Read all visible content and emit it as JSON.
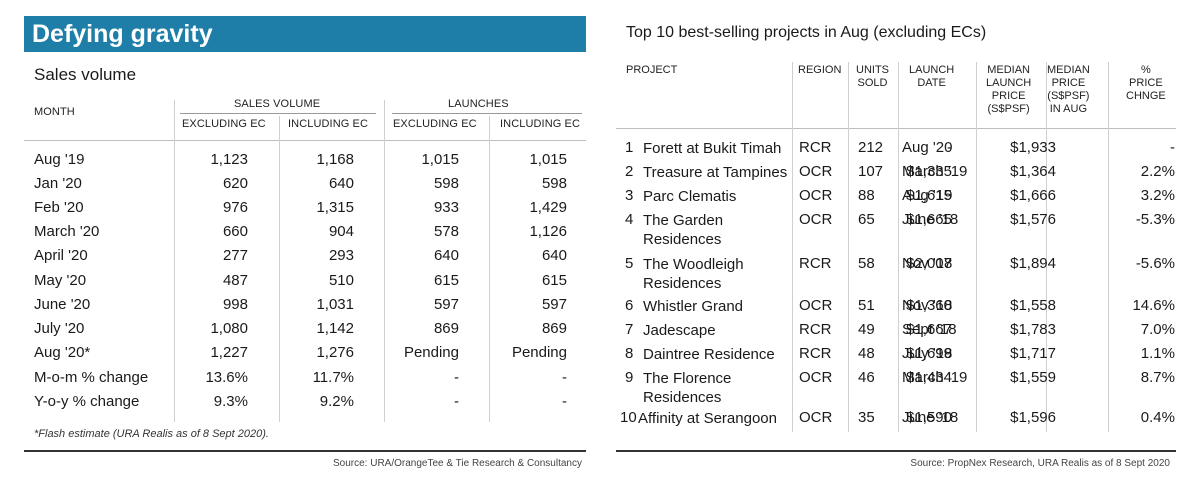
{
  "left": {
    "banner": "Defying gravity",
    "subtitle": "Sales volume",
    "headers": {
      "month": "MONTH",
      "sales_volume": "SALES VOLUME",
      "launches": "LAUNCHES",
      "excl_ec_1": "EXCLUDING EC",
      "incl_ec_1": "INCLUDING EC",
      "excl_ec_2": "EXCLUDING EC",
      "incl_ec_2": "INCLUDING EC"
    },
    "rows": [
      {
        "month": "Aug '19",
        "sv_excl": "1,123",
        "sv_incl": "1,168",
        "l_excl": "1,015",
        "l_incl": "1,015"
      },
      {
        "month": "Jan '20",
        "sv_excl": "620",
        "sv_incl": "640",
        "l_excl": "598",
        "l_incl": "598"
      },
      {
        "month": "Feb '20",
        "sv_excl": "976",
        "sv_incl": "1,315",
        "l_excl": "933",
        "l_incl": "1,429"
      },
      {
        "month": "March '20",
        "sv_excl": "660",
        "sv_incl": "904",
        "l_excl": "578",
        "l_incl": "1,126"
      },
      {
        "month": "April '20",
        "sv_excl": "277",
        "sv_incl": "293",
        "l_excl": "640",
        "l_incl": "640"
      },
      {
        "month": "May '20",
        "sv_excl": "487",
        "sv_incl": "510",
        "l_excl": "615",
        "l_incl": "615"
      },
      {
        "month": "June '20",
        "sv_excl": "998",
        "sv_incl": "1,031",
        "l_excl": "597",
        "l_incl": "597"
      },
      {
        "month": "July '20",
        "sv_excl": "1,080",
        "sv_incl": "1,142",
        "l_excl": "869",
        "l_incl": "869"
      },
      {
        "month": "Aug '20*",
        "sv_excl": "1,227",
        "sv_incl": "1,276",
        "l_excl": "Pending",
        "l_incl": "Pending"
      },
      {
        "month": "M-o-m % change",
        "sv_excl": "13.6%",
        "sv_incl": "11.7%",
        "l_excl": "-",
        "l_incl": "-"
      },
      {
        "month": "Y-o-y % change",
        "sv_excl": "9.3%",
        "sv_incl": "9.2%",
        "l_excl": "-",
        "l_incl": "-"
      }
    ],
    "footnote": "*Flash estimate (URA Realis as of 8 Sept 2020).",
    "source": "Source: URA/OrangeTee & Tie Research & Consultancy"
  },
  "right": {
    "title": "Top 10 best-selling projects in Aug (excluding ECs)",
    "headers": {
      "project": "PROJECT",
      "region": "REGION",
      "units_sold": "UNITS\nSOLD",
      "launch_date": "LAUNCH\nDATE",
      "median_launch_price": "MEDIAN\nLAUNCH\nPRICE\n(S$PSF)",
      "median_price_aug": "MEDIAN\nPRICE\n(S$PSF)\nIN AUG",
      "pct_price_change": "%\nPRICE\nCHNGE"
    },
    "rows": [
      {
        "num": "1",
        "project": "Forett at Bukit Timah",
        "region": "RCR",
        "units": "212",
        "date": "Aug '20",
        "launch_price": "-",
        "aug_price": "$1,933",
        "change": "-"
      },
      {
        "num": "2",
        "project": "Treasure at Tampines",
        "region": "OCR",
        "units": "107",
        "date": "March '19",
        "launch_price": "$1,335",
        "aug_price": "$1,364",
        "change": "2.2%"
      },
      {
        "num": "3",
        "project": "Parc Clematis",
        "region": "OCR",
        "units": "88",
        "date": "Aug '19",
        "launch_price": "$1,615",
        "aug_price": "$1,666",
        "change": "3.2%"
      },
      {
        "num": "4",
        "project": "The Garden\nResidences",
        "region": "OCR",
        "units": "65",
        "date": "June '18",
        "launch_price": "$1,665",
        "aug_price": "$1,576",
        "change": "-5.3%"
      },
      {
        "num": "5",
        "project": "The Woodleigh\nResidences",
        "region": "RCR",
        "units": "58",
        "date": "Nov '18",
        "launch_price": "$2,007",
        "aug_price": "$1,894",
        "change": "-5.6%"
      },
      {
        "num": "6",
        "project": "Whistler Grand",
        "region": "OCR",
        "units": "51",
        "date": "Nov '18",
        "launch_price": "$1,360",
        "aug_price": "$1,558",
        "change": "14.6%"
      },
      {
        "num": "7",
        "project": "Jadescape",
        "region": "RCR",
        "units": "49",
        "date": "Sept '18",
        "launch_price": "$1,667",
        "aug_price": "$1,783",
        "change": "7.0%"
      },
      {
        "num": "8",
        "project": "Daintree Residence",
        "region": "RCR",
        "units": "48",
        "date": "July '18",
        "launch_price": "$1,699",
        "aug_price": "$1,717",
        "change": "1.1%"
      },
      {
        "num": "9",
        "project": "The Florence\nResidences",
        "region": "OCR",
        "units": "46",
        "date": "March '19",
        "launch_price": "$1,434",
        "aug_price": "$1,559",
        "change": "8.7%"
      },
      {
        "num": "10",
        "project": "Affinity at Serangoon",
        "region": "OCR",
        "units": "35",
        "date": "June '18",
        "launch_price": "$1,590",
        "aug_price": "$1,596",
        "change": "0.4%"
      }
    ],
    "source": "Source: PropNex Research, URA Realis as of 8 Sept 2020"
  }
}
